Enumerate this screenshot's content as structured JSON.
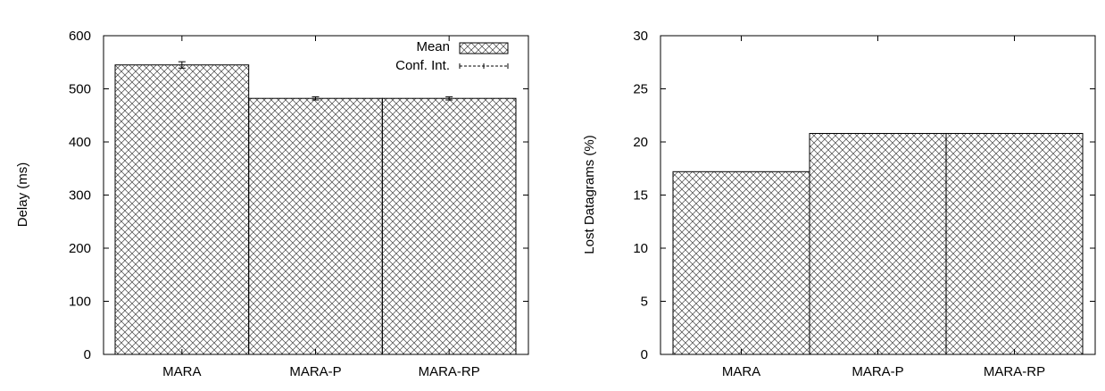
{
  "chart_data": [
    {
      "type": "bar",
      "categories": [
        "MARA",
        "MARA-P",
        "MARA-RP"
      ],
      "series": [
        {
          "name": "Mean",
          "values": [
            545,
            482,
            482
          ]
        }
      ],
      "conf_int": [
        [
          539,
          551
        ],
        [
          479,
          485
        ],
        [
          479,
          485
        ]
      ],
      "xlabel": "",
      "ylabel": "Delay (ms)",
      "ylim": [
        0,
        600
      ],
      "yticks": [
        "0",
        "100",
        "200",
        "300",
        "400",
        "500",
        "600"
      ],
      "legend": {
        "position": "top-right",
        "entries": [
          "Mean",
          "Conf. Int."
        ]
      },
      "grid": false,
      "pattern": "crosshatch"
    },
    {
      "type": "bar",
      "categories": [
        "MARA",
        "MARA-P",
        "MARA-RP"
      ],
      "series": [
        {
          "values": [
            17.2,
            20.8,
            20.8
          ]
        }
      ],
      "xlabel": "",
      "ylabel": "Lost Datagrams (%)",
      "ylim": [
        0,
        30
      ],
      "yticks": [
        "0",
        "5",
        "10",
        "15",
        "20",
        "25",
        "30"
      ],
      "legend": null,
      "grid": false,
      "pattern": "crosshatch"
    }
  ]
}
